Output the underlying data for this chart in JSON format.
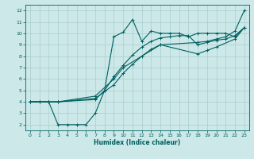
{
  "xlabel": "Humidex (Indice chaleur)",
  "xlim": [
    -0.5,
    23.5
  ],
  "ylim": [
    1.5,
    12.5
  ],
  "xticks": [
    0,
    1,
    2,
    3,
    4,
    5,
    6,
    7,
    8,
    9,
    10,
    11,
    12,
    13,
    14,
    15,
    16,
    17,
    18,
    19,
    20,
    21,
    22,
    23
  ],
  "yticks": [
    2,
    3,
    4,
    5,
    6,
    7,
    8,
    9,
    10,
    11,
    12
  ],
  "bg_color": "#cce8e8",
  "line_color": "#006060",
  "grid_color": "#aacece",
  "lines": [
    {
      "x": [
        0,
        1,
        2,
        3,
        4,
        5,
        6,
        7,
        8,
        9,
        10,
        11,
        12,
        13,
        14,
        15,
        16,
        17,
        18,
        19,
        20,
        21,
        22,
        23
      ],
      "y": [
        4,
        4,
        4,
        2,
        2,
        2,
        2,
        3,
        5,
        9.7,
        10.1,
        11.2,
        9.3,
        10.2,
        10.0,
        10.0,
        10.0,
        9.7,
        10.0,
        10.0,
        10.0,
        10.0,
        9.7,
        10.5
      ]
    },
    {
      "x": [
        0,
        1,
        2,
        3,
        7,
        8,
        9,
        10,
        11,
        12,
        13,
        14,
        15,
        16,
        17,
        18,
        19,
        20,
        21,
        22,
        23
      ],
      "y": [
        4,
        4,
        4,
        4,
        4.2,
        5.0,
        6.2,
        7.2,
        8.1,
        8.8,
        9.3,
        9.6,
        9.7,
        9.8,
        9.8,
        9.0,
        9.2,
        9.4,
        9.5,
        9.8,
        10.5
      ]
    },
    {
      "x": [
        0,
        2,
        3,
        7,
        9,
        10,
        11,
        12,
        13,
        14,
        18,
        19,
        20,
        21,
        22,
        23
      ],
      "y": [
        4,
        4,
        4,
        4.3,
        5.5,
        6.5,
        7.3,
        8.0,
        8.6,
        9.0,
        9.2,
        9.3,
        9.5,
        9.7,
        10.2,
        12.0
      ]
    },
    {
      "x": [
        0,
        2,
        3,
        7,
        9,
        10,
        14,
        18,
        19,
        20,
        22,
        23
      ],
      "y": [
        4,
        4,
        4,
        4.5,
        6.0,
        7.0,
        9.0,
        8.2,
        8.5,
        8.8,
        9.5,
        10.5
      ]
    }
  ]
}
